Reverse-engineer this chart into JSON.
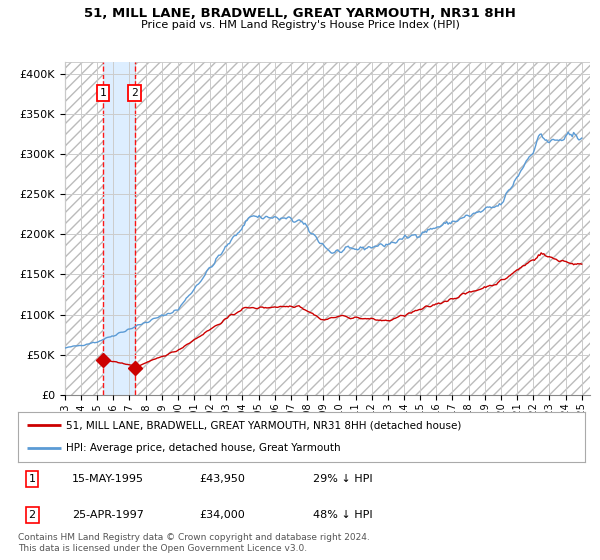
{
  "title": "51, MILL LANE, BRADWELL, GREAT YARMOUTH, NR31 8HH",
  "subtitle": "Price paid vs. HM Land Registry's House Price Index (HPI)",
  "ytick_values": [
    0,
    50000,
    100000,
    150000,
    200000,
    250000,
    300000,
    350000,
    400000
  ],
  "ylim": [
    0,
    415000
  ],
  "xlim_start": 1993.0,
  "xlim_end": 2025.5,
  "hpi_color": "#5b9bd5",
  "price_color": "#cc0000",
  "transaction1_date": 1995.37,
  "transaction1_price": 43950,
  "transaction1_label": "1",
  "transaction2_date": 1997.32,
  "transaction2_price": 34000,
  "transaction2_label": "2",
  "last_transaction_date": 1997.32,
  "legend_line1": "51, MILL LANE, BRADWELL, GREAT YARMOUTH, NR31 8HH (detached house)",
  "legend_line2": "HPI: Average price, detached house, Great Yarmouth",
  "table_row1": [
    "1",
    "15-MAY-1995",
    "£43,950",
    "29% ↓ HPI"
  ],
  "table_row2": [
    "2",
    "25-APR-1997",
    "£34,000",
    "48% ↓ HPI"
  ],
  "footer": "Contains HM Land Registry data © Crown copyright and database right 2024.\nThis data is licensed under the Open Government Licence v3.0.",
  "shade_color": "#ddeeff",
  "background_color": "#ffffff",
  "grid_color": "#cccccc"
}
